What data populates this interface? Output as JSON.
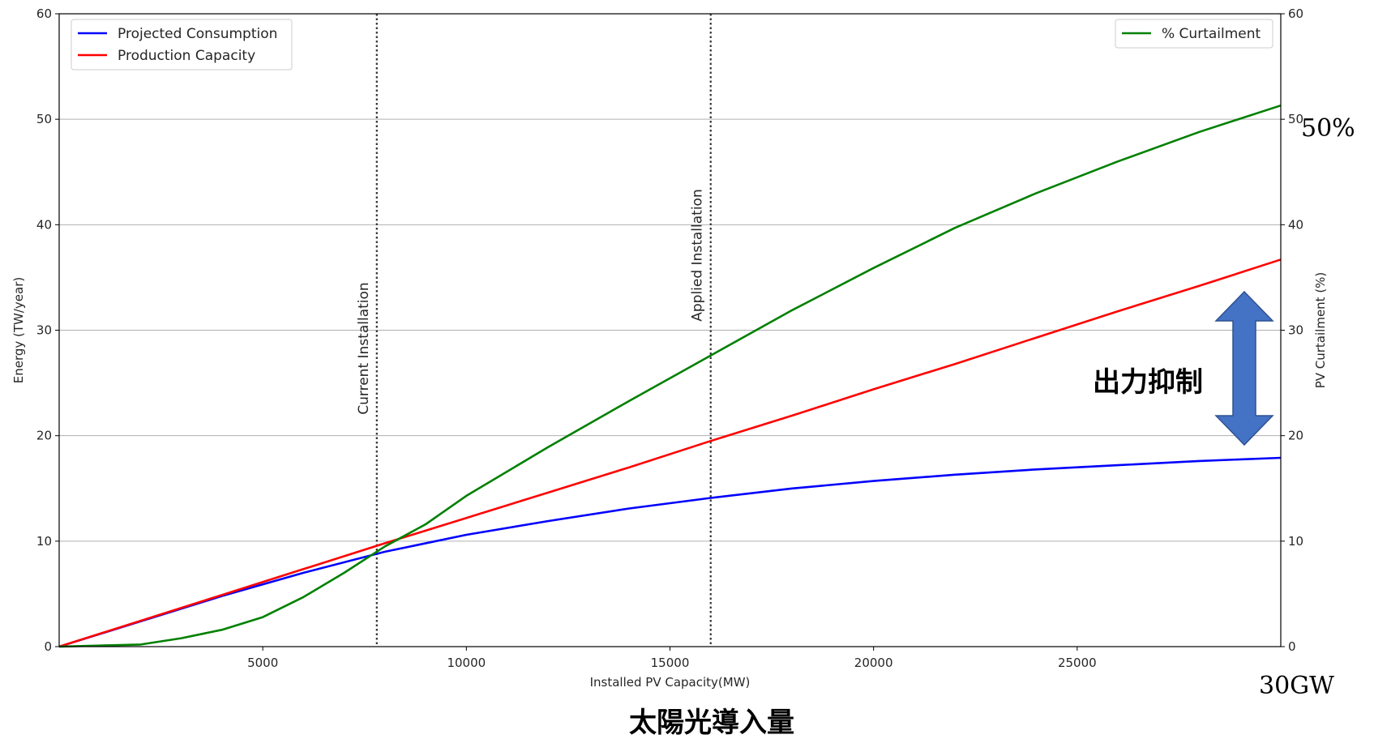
{
  "chart_data": {
    "type": "line",
    "xlabel": "Installed PV Capacity(MW)",
    "ylabel": "Energy (TW/year)",
    "y2label": "PV Curtailment (%)",
    "xlim": [
      0,
      30000
    ],
    "ylim": [
      0,
      60
    ],
    "y2lim": [
      0,
      60
    ],
    "x_ticks": [
      5000,
      10000,
      15000,
      20000,
      25000
    ],
    "y_ticks": [
      0,
      10,
      20,
      30,
      40,
      50,
      60
    ],
    "y2_ticks": [
      0,
      10,
      20,
      30,
      40,
      50,
      60
    ],
    "grid": "horizontal",
    "legend_left": "top-left",
    "legend_right": "top-right",
    "series": [
      {
        "name": "Projected Consumption",
        "axis": "left",
        "color": "#0000ff",
        "x": [
          0,
          2000,
          4000,
          6000,
          8000,
          10000,
          12000,
          14000,
          16000,
          18000,
          20000,
          22000,
          24000,
          26000,
          28000,
          30000
        ],
        "values": [
          0,
          2.4,
          4.8,
          7.0,
          9.0,
          10.6,
          11.9,
          13.1,
          14.1,
          15.0,
          15.7,
          16.3,
          16.8,
          17.2,
          17.6,
          17.9
        ]
      },
      {
        "name": "Production Capacity",
        "axis": "left",
        "color": "#ff0000",
        "x": [
          0,
          2000,
          4000,
          6000,
          8000,
          10000,
          12000,
          14000,
          16000,
          18000,
          20000,
          22000,
          24000,
          26000,
          28000,
          30000
        ],
        "values": [
          0,
          2.45,
          4.9,
          7.35,
          9.8,
          12.2,
          14.6,
          17.0,
          19.5,
          21.9,
          24.4,
          26.8,
          29.3,
          31.8,
          34.2,
          36.7
        ]
      },
      {
        "name": "% Curtailment",
        "axis": "right",
        "color": "#008000",
        "x": [
          0,
          2000,
          3000,
          4000,
          5000,
          6000,
          7000,
          8000,
          9000,
          10000,
          12000,
          14000,
          16000,
          18000,
          20000,
          22000,
          24000,
          26000,
          28000,
          30000
        ],
        "values": [
          0,
          0.2,
          0.8,
          1.6,
          2.8,
          4.7,
          7.0,
          9.5,
          11.6,
          14.3,
          18.9,
          23.3,
          27.6,
          31.9,
          35.9,
          39.7,
          43.0,
          46.0,
          48.8,
          51.3
        ]
      }
    ],
    "vlines": [
      {
        "x": 7800,
        "label": "Current Installation"
      },
      {
        "x": 16000,
        "label": "Applied Installation"
      }
    ]
  },
  "annotations": {
    "pct_label": "50%",
    "gw_label": "30GW",
    "x_caption": "太陽光導入量",
    "arrow_label": "出力抑制",
    "arrow_color": "#4472c4"
  }
}
